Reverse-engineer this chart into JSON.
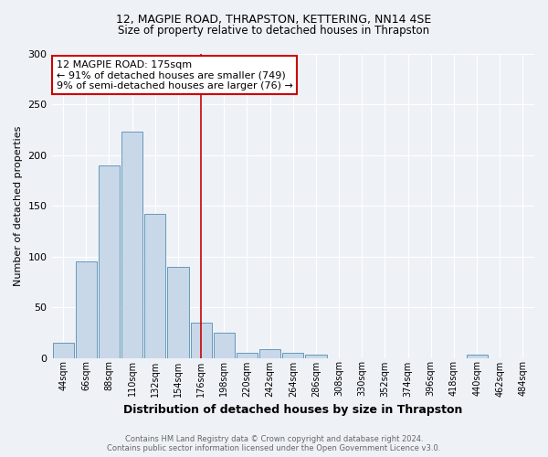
{
  "title1": "12, MAGPIE ROAD, THRAPSTON, KETTERING, NN14 4SE",
  "title2": "Size of property relative to detached houses in Thrapston",
  "xlabel": "Distribution of detached houses by size in Thrapston",
  "ylabel": "Number of detached properties",
  "footer1": "Contains HM Land Registry data © Crown copyright and database right 2024.",
  "footer2": "Contains public sector information licensed under the Open Government Licence v3.0.",
  "bin_labels": [
    "44sqm",
    "66sqm",
    "88sqm",
    "110sqm",
    "132sqm",
    "154sqm",
    "176sqm",
    "198sqm",
    "220sqm",
    "242sqm",
    "264sqm",
    "286sqm",
    "308sqm",
    "330sqm",
    "352sqm",
    "374sqm",
    "396sqm",
    "418sqm",
    "440sqm",
    "462sqm",
    "484sqm"
  ],
  "bar_values": [
    15,
    95,
    190,
    223,
    142,
    90,
    35,
    25,
    5,
    9,
    5,
    3,
    0,
    0,
    0,
    0,
    0,
    0,
    3,
    0,
    0
  ],
  "bar_color": "#c8d8e8",
  "bar_edge_color": "#6699bb",
  "vline_color": "#cc0000",
  "annotation_text_line1": "12 MAGPIE ROAD: 175sqm",
  "annotation_text_line2": "← 91% of detached houses are smaller (749)",
  "annotation_text_line3": "9% of semi-detached houses are larger (76) →",
  "ylim": [
    0,
    300
  ],
  "yticks": [
    0,
    50,
    100,
    150,
    200,
    250,
    300
  ],
  "bg_color": "#eef2f7",
  "grid_color": "#ffffff",
  "fig_width": 6.0,
  "fig_height": 5.0,
  "dpi": 100
}
